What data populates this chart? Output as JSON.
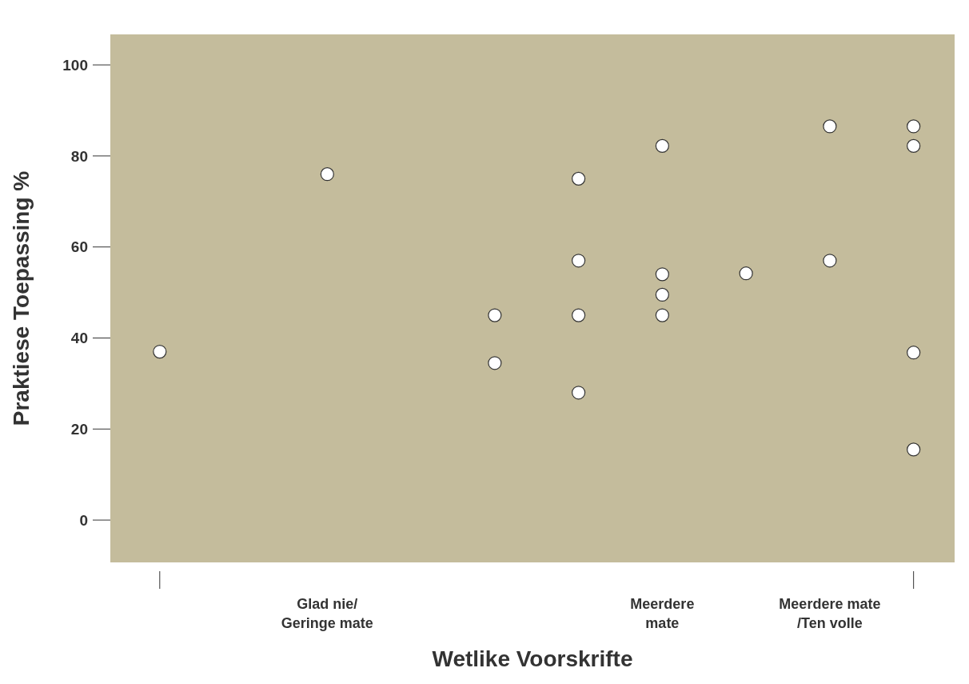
{
  "chart_data": {
    "type": "scatter",
    "xlabel": "Wetlike Voorskrifte",
    "ylabel": "Praktiese Toepassing %",
    "categories": [
      null,
      null,
      "Glad nie/\nGeringe mate",
      null,
      null,
      null,
      "Meerdere\nmate",
      null,
      "Meerdere mate\n/Ten volle",
      null
    ],
    "series": [
      {
        "color": "#ffffff",
        "values": [
          37,
          null,
          76,
          null,
          45,
          75,
          82.2,
          54.2,
          86.5,
          86.5
        ]
      },
      {
        "color": "#ffffff",
        "values": [
          null,
          null,
          null,
          null,
          34.5,
          57,
          54,
          null,
          57,
          82.2
        ]
      },
      {
        "color": "#ffffff",
        "values": [
          null,
          null,
          null,
          null,
          null,
          45,
          49.5,
          null,
          null,
          36.8
        ]
      },
      {
        "color": "#ffffff",
        "values": [
          null,
          null,
          null,
          null,
          null,
          28,
          45,
          null,
          null,
          15.5
        ]
      }
    ],
    "marker": "circle",
    "grid": false,
    "legend": false,
    "ylim": [
      -9.3,
      106.7
    ],
    "yticks": [
      0,
      20,
      40,
      60,
      80,
      100
    ]
  }
}
